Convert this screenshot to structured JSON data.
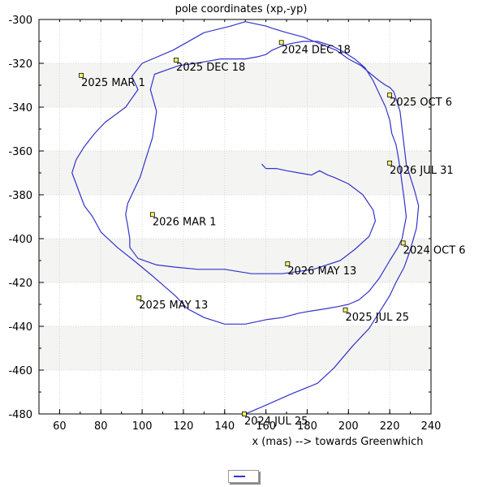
{
  "chart_data": {
    "type": "line",
    "title": "pole coordinates (xp,-yp)",
    "xlabel": "x (mas) --> towards Greenwhich",
    "ylabel": "",
    "xlim": [
      50,
      240
    ],
    "ylim": [
      -480,
      -300
    ],
    "xticks": [
      60,
      80,
      100,
      120,
      140,
      160,
      180,
      200,
      220,
      240
    ],
    "yticks": [
      -300,
      -320,
      -340,
      -360,
      -380,
      -400,
      -420,
      -440,
      -460,
      -480
    ],
    "grid": true,
    "line_color": "#3333cc",
    "series": [
      {
        "name": "",
        "x": [
          150,
          160,
          172,
          185,
          193,
          202,
          210,
          216,
          220,
          223,
          227,
          230,
          233,
          234,
          232,
          230,
          228,
          227,
          226,
          225,
          223,
          222,
          221,
          220,
          218,
          215,
          211,
          206,
          200,
          194,
          186,
          178,
          170,
          163,
          160,
          155,
          150,
          143,
          130,
          115,
          100,
          95,
          98,
          92,
          82,
          77,
          72,
          68,
          66,
          68,
          70,
          72,
          76,
          80,
          88,
          96,
          105,
          116,
          122,
          130,
          140,
          150,
          160,
          168,
          176,
          182,
          189,
          195,
          200,
          205,
          210,
          215,
          220,
          224,
          226,
          228,
          227,
          226,
          225,
          224,
          223,
          221,
          220,
          218,
          215,
          212,
          208,
          203,
          198,
          192,
          185,
          178,
          172,
          168,
          163,
          160,
          156,
          150,
          144,
          138,
          132,
          126,
          118,
          112,
          106,
          104,
          107,
          105,
          101,
          99,
          96,
          93,
          92,
          93,
          94,
          94,
          98,
          107,
          116,
          127,
          140,
          153,
          168,
          183,
          196,
          203,
          210,
          213,
          212,
          207,
          200,
          193,
          190,
          186,
          182,
          176,
          170,
          165,
          160,
          158
        ],
        "y": [
          -480,
          -476,
          -471,
          -466,
          -459,
          -449,
          -441,
          -432,
          -426,
          -420,
          -413,
          -405,
          -395,
          -385,
          -378,
          -372,
          -366,
          -358,
          -350,
          -342,
          -336,
          -333,
          -332,
          -331,
          -330,
          -328,
          -325,
          -321,
          -318,
          -314,
          -311,
          -308,
          -306,
          -304,
          -303,
          -302,
          -301,
          -303,
          -306,
          -314,
          -320,
          -326,
          -332,
          -340,
          -347,
          -352,
          -358,
          -364,
          -370,
          -375,
          -380,
          -385,
          -390,
          -397,
          -404,
          -410,
          -417,
          -426,
          -432,
          -436,
          -439,
          -439,
          -437,
          -436,
          -434,
          -433,
          -432,
          -431,
          -430,
          -428,
          -424,
          -418,
          -410,
          -404,
          -400,
          -390,
          -382,
          -375,
          -368,
          -362,
          -357,
          -352,
          -346,
          -340,
          -334,
          -328,
          -322,
          -318,
          -315,
          -312,
          -310,
          -310,
          -311,
          -312,
          -314,
          -316,
          -317,
          -318,
          -318,
          -318,
          -319,
          -320,
          -321,
          -323,
          -325,
          -332,
          -342,
          -354,
          -366,
          -372,
          -378,
          -384,
          -389,
          -394,
          -400,
          -404,
          -409,
          -412,
          -413,
          -414,
          -414,
          -416,
          -416,
          -414,
          -410,
          -405,
          -399,
          -392,
          -387,
          -380,
          -375,
          -372,
          -371,
          -369,
          -371,
          -370,
          -369,
          -368,
          -368,
          -366
        ]
      }
    ],
    "points": [
      {
        "label": "2024 JUL 25",
        "x": 149.5,
        "y": -480
      },
      {
        "label": "2024 OCT 6",
        "x": 226.5,
        "y": -402
      },
      {
        "label": "2024 DEC 18",
        "x": 167.5,
        "y": -310.5
      },
      {
        "label": "2025 MAR 1",
        "x": 70.5,
        "y": -325.5
      },
      {
        "label": "2025 MAY 13",
        "x": 98.5,
        "y": -427
      },
      {
        "label": "2025 JUL 25",
        "x": 198.5,
        "y": -432.5
      },
      {
        "label": "2025 OCT 6",
        "x": 220,
        "y": -334.5
      },
      {
        "label": "2025 DEC 18",
        "x": 116.5,
        "y": -318.5
      },
      {
        "label": "2026 MAR 1",
        "x": 105,
        "y": -389
      },
      {
        "label": "2026 MAY 13",
        "x": 170.5,
        "y": -411.5
      },
      {
        "label": "2026 JUL 31",
        "x": 220,
        "y": -365.5
      }
    ]
  }
}
